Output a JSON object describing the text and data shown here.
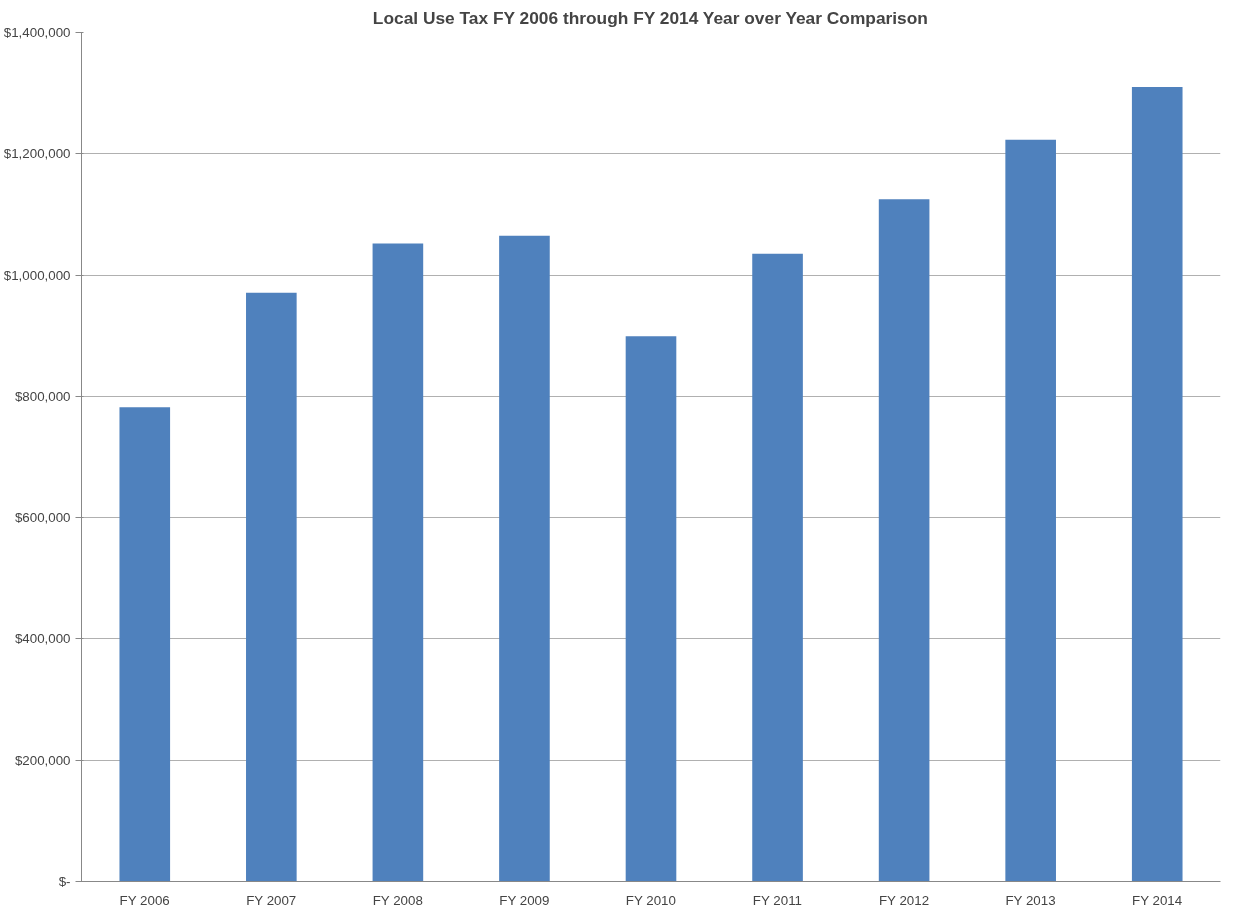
{
  "chart_data": {
    "type": "bar",
    "title": "Local Use Tax FY 2006 through FY 2014 Year over Year Comparison",
    "categories": [
      "FY 2006",
      "FY 2007",
      "FY 2008",
      "FY 2009",
      "FY 2010",
      "FY 2011",
      "FY 2012",
      "FY 2013",
      "FY 2014"
    ],
    "values": [
      782000,
      971000,
      1052000,
      1065000,
      899000,
      1035000,
      1125000,
      1223000,
      1310000
    ],
    "color": "#4f81bd",
    "ylim": [
      0,
      1400000
    ],
    "yticks": [
      {
        "value": 0,
        "label": "$-"
      },
      {
        "value": 200000,
        "label": "$200,000"
      },
      {
        "value": 400000,
        "label": "$400,000"
      },
      {
        "value": 600000,
        "label": "$600,000"
      },
      {
        "value": 800000,
        "label": "$800,000"
      },
      {
        "value": 1000000,
        "label": "$1,000,000"
      },
      {
        "value": 1200000,
        "label": "$1,200,000"
      },
      {
        "value": 1400000,
        "label": "$1,400,000"
      }
    ],
    "grid": "y"
  }
}
